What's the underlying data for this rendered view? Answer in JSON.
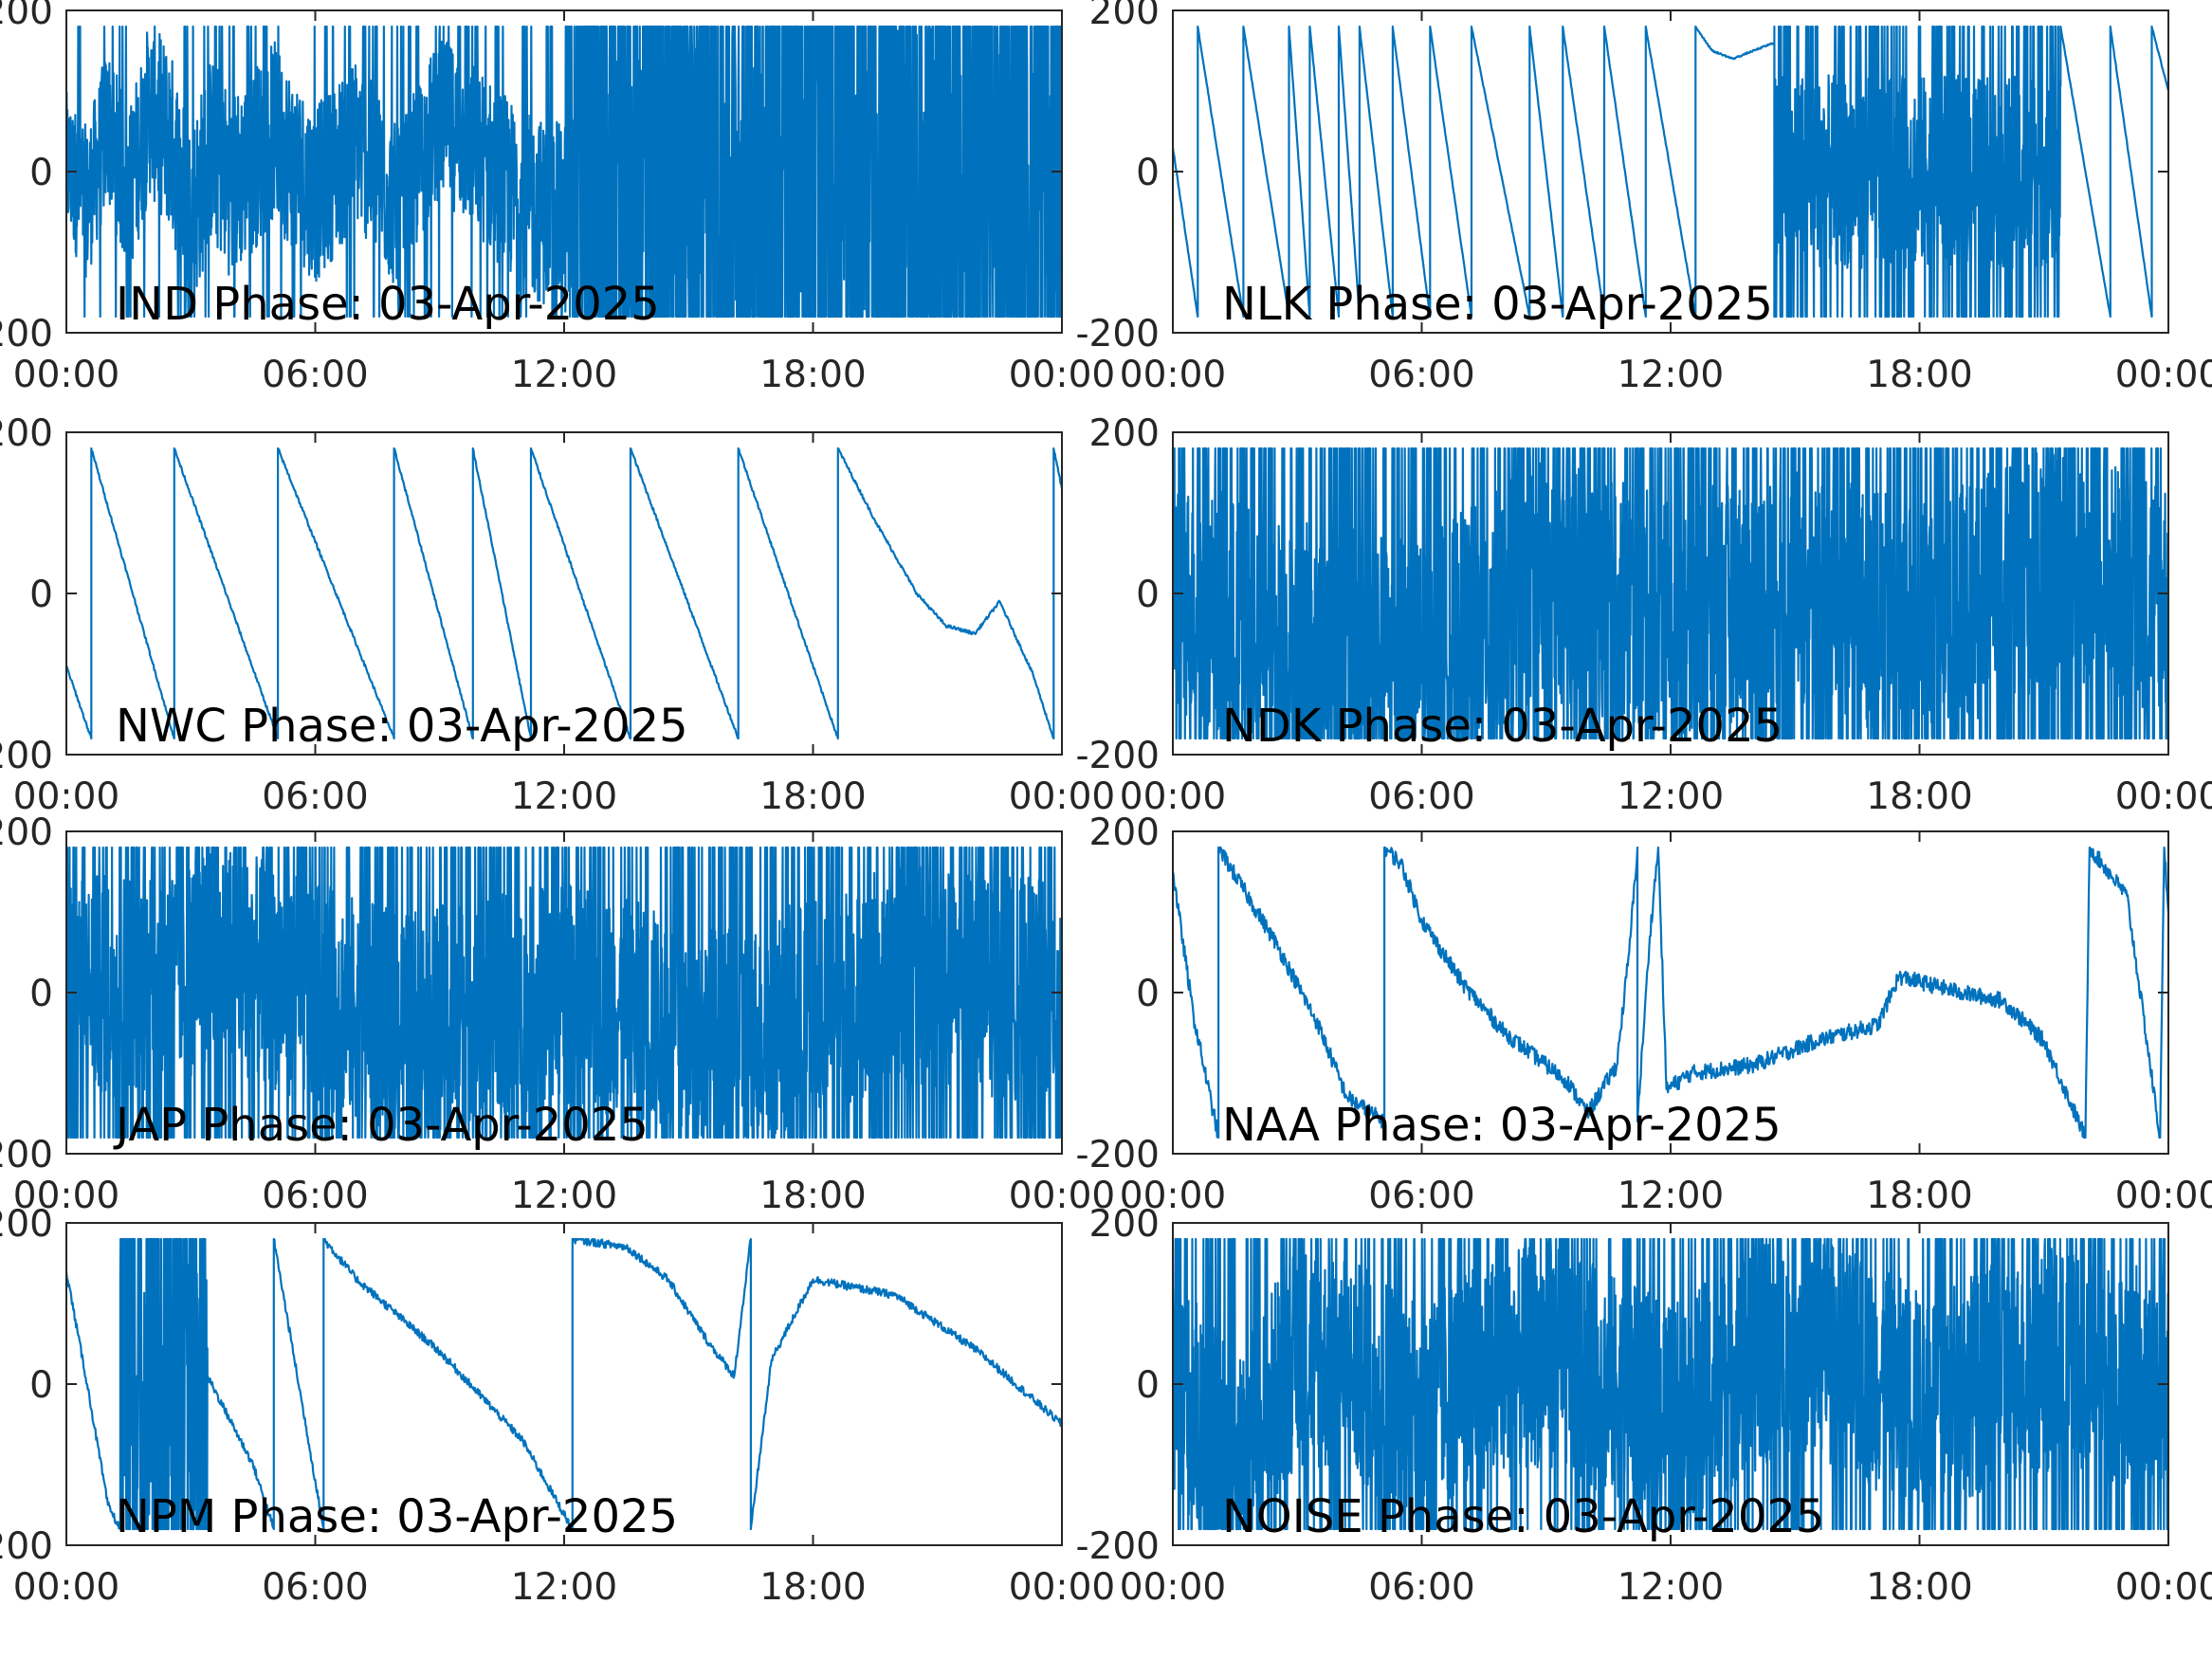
{
  "figure": {
    "background": "#ffffff",
    "series_color": "#0072bd",
    "axis_color": "#262626"
  },
  "chart_data": [
    {
      "type": "line",
      "station": "IND",
      "title": "IND Phase: 03-Apr-2025",
      "x_ticks": [
        "00:00",
        "06:00",
        "12:00",
        "18:00",
        "00:00"
      ],
      "y_ticks": [
        "-200",
        "0",
        "200"
      ],
      "ylim": [
        -200,
        200
      ],
      "x_range_hours": [
        0,
        24
      ],
      "series": [
        {
          "style": "noise",
          "values": [
            [
              0,
              10
            ],
            [
              0.5,
              -40
            ],
            [
              1,
              60
            ],
            [
              1.5,
              -30
            ],
            [
              2,
              80
            ],
            [
              2.5,
              40
            ],
            [
              3,
              -60
            ],
            [
              3.5,
              30
            ],
            [
              4,
              -20
            ],
            [
              5,
              50
            ],
            [
              6,
              -30
            ],
            [
              7,
              40
            ],
            [
              8,
              -50
            ],
            [
              9,
              70
            ],
            [
              10,
              20
            ],
            [
              11,
              -40
            ],
            [
              12,
              -60
            ],
            [
              12.5,
              0
            ],
            [
              24,
              0
            ]
          ],
          "noise_amp": [
            [
              0,
              90
            ],
            [
              3,
              120
            ],
            [
              6,
              110
            ],
            [
              9,
              100
            ],
            [
              12,
              120
            ],
            [
              12.5,
              220
            ],
            [
              24,
              220
            ]
          ],
          "wrap_prob": [
            [
              0,
              0.05
            ],
            [
              3,
              0.08
            ],
            [
              6,
              0.1
            ],
            [
              9,
              0.1
            ],
            [
              12,
              0.15
            ],
            [
              12.5,
              0.6
            ],
            [
              24,
              0.6
            ]
          ]
        }
      ]
    },
    {
      "type": "line",
      "station": "NLK",
      "title": "NLK Phase: 03-Apr-2025",
      "x_ticks": [
        "00:00",
        "06:00",
        "12:00",
        "18:00",
        "00:00"
      ],
      "y_ticks": [
        "-200",
        "0",
        "200"
      ],
      "ylim": [
        -200,
        200
      ],
      "x_range_hours": [
        0,
        24
      ],
      "series": [
        {
          "style": "mixed",
          "values": [
            [
              0,
              30
            ],
            [
              0.6,
              -180
            ],
            [
              0.6,
              180
            ],
            [
              1.7,
              -180
            ],
            [
              1.7,
              180
            ],
            [
              2.8,
              -180
            ],
            [
              2.8,
              180
            ],
            [
              3.3,
              -180
            ],
            [
              3.3,
              180
            ],
            [
              4.0,
              -180
            ],
            [
              4.0,
              180
            ],
            [
              4.5,
              -180
            ],
            [
              4.5,
              180
            ],
            [
              5.3,
              -180
            ],
            [
              5.3,
              180
            ],
            [
              6.2,
              -180
            ],
            [
              6.2,
              180
            ],
            [
              7.2,
              -180
            ],
            [
              7.2,
              180
            ],
            [
              8.6,
              -180
            ],
            [
              8.6,
              180
            ],
            [
              9.4,
              -180
            ],
            [
              9.4,
              180
            ],
            [
              10.4,
              -180
            ],
            [
              10.4,
              180
            ],
            [
              11.4,
              -180
            ],
            [
              11.4,
              180
            ],
            [
              12.6,
              -180
            ],
            [
              12.6,
              180
            ],
            [
              13.0,
              150
            ],
            [
              13.5,
              140
            ],
            [
              14.5,
              160
            ],
            [
              14.5,
              -180
            ]
          ],
          "noise_segments": [
            {
              "from": 14.5,
              "to": 21.4,
              "center": 0,
              "amp": 120,
              "wrap_prob": 0.25
            }
          ],
          "tail": [
            [
              21.4,
              180
            ],
            [
              22.6,
              -180
            ],
            [
              22.6,
              180
            ],
            [
              23.6,
              -180
            ],
            [
              23.6,
              180
            ],
            [
              24,
              100
            ]
          ]
        }
      ]
    },
    {
      "type": "line",
      "station": "NWC",
      "title": "NWC Phase: 03-Apr-2025",
      "x_ticks": [
        "00:00",
        "06:00",
        "12:00",
        "18:00",
        "00:00"
      ],
      "y_ticks": [
        "-200",
        "0",
        "200"
      ],
      "ylim": [
        -200,
        200
      ],
      "x_range_hours": [
        0,
        24
      ],
      "series": [
        {
          "style": "sawtooth",
          "values": [
            [
              0,
              -90
            ],
            [
              0.6,
              -180
            ],
            [
              0.6,
              180
            ],
            [
              2.6,
              -180
            ],
            [
              2.6,
              180
            ],
            [
              5.1,
              -180
            ],
            [
              5.1,
              180
            ],
            [
              7.9,
              -180
            ],
            [
              7.9,
              180
            ],
            [
              9.8,
              -180
            ],
            [
              9.8,
              180
            ],
            [
              11.2,
              -180
            ],
            [
              11.2,
              180
            ],
            [
              13.6,
              -180
            ],
            [
              13.6,
              180
            ],
            [
              16.2,
              -180
            ],
            [
              16.2,
              180
            ],
            [
              18.6,
              -180
            ],
            [
              18.6,
              180
            ],
            [
              19.5,
              90
            ],
            [
              20.5,
              0
            ],
            [
              21.2,
              -40
            ],
            [
              21.9,
              -50
            ],
            [
              22.5,
              -10
            ],
            [
              23.3,
              -100
            ],
            [
              23.8,
              -180
            ],
            [
              23.8,
              180
            ],
            [
              24,
              130
            ]
          ]
        }
      ]
    },
    {
      "type": "line",
      "station": "NDK",
      "title": "NDK Phase: 03-Apr-2025",
      "x_ticks": [
        "00:00",
        "06:00",
        "12:00",
        "18:00",
        "00:00"
      ],
      "y_ticks": [
        "-200",
        "0",
        "200"
      ],
      "ylim": [
        -200,
        200
      ],
      "x_range_hours": [
        0,
        24
      ],
      "series": [
        {
          "style": "noise",
          "values": [
            [
              0,
              0
            ],
            [
              3,
              -60
            ],
            [
              6,
              -80
            ],
            [
              9,
              20
            ],
            [
              12,
              -30
            ],
            [
              15,
              10
            ],
            [
              18,
              -40
            ],
            [
              21,
              30
            ],
            [
              24,
              0
            ]
          ],
          "noise_amp": [
            [
              0,
              150
            ],
            [
              24,
              150
            ]
          ],
          "wrap_prob": [
            [
              0,
              0.3
            ],
            [
              24,
              0.3
            ]
          ]
        }
      ]
    },
    {
      "type": "line",
      "station": "JAP",
      "title": "JAP Phase: 03-Apr-2025",
      "x_ticks": [
        "00:00",
        "06:00",
        "12:00",
        "18:00",
        "00:00"
      ],
      "y_ticks": [
        "-200",
        "0",
        "200"
      ],
      "ylim": [
        -200,
        200
      ],
      "x_range_hours": [
        0,
        24
      ],
      "series": [
        {
          "style": "noise",
          "values": [
            [
              0,
              0
            ],
            [
              4,
              40
            ],
            [
              8,
              -40
            ],
            [
              12,
              0
            ],
            [
              16,
              -60
            ],
            [
              20,
              20
            ],
            [
              24,
              0
            ]
          ],
          "noise_amp": [
            [
              0,
              140
            ],
            [
              24,
              140
            ]
          ],
          "wrap_prob": [
            [
              0,
              0.25
            ],
            [
              24,
              0.3
            ]
          ]
        }
      ]
    },
    {
      "type": "line",
      "station": "NAA",
      "title": "NAA Phase: 03-Apr-2025",
      "x_ticks": [
        "00:00",
        "06:00",
        "12:00",
        "18:00",
        "00:00"
      ],
      "y_ticks": [
        "-200",
        "0",
        "200"
      ],
      "ylim": [
        -200,
        200
      ],
      "x_range_hours": [
        0,
        24
      ],
      "series": [
        {
          "style": "smooth",
          "values": [
            [
              0,
              150
            ],
            [
              0.5,
              -30
            ],
            [
              1.1,
              -180
            ],
            [
              1.1,
              180
            ],
            [
              2.5,
              60
            ],
            [
              3.5,
              -40
            ],
            [
              4.2,
              -130
            ],
            [
              5.1,
              -160
            ],
            [
              5.1,
              180
            ],
            [
              5.5,
              160
            ],
            [
              6,
              90
            ],
            [
              7,
              10
            ],
            [
              8,
              -50
            ],
            [
              8.5,
              -70
            ],
            [
              9.5,
              -110
            ],
            [
              10,
              -150
            ],
            [
              10.7,
              -90
            ],
            [
              11,
              50
            ],
            [
              11.2,
              180
            ],
            [
              11.2,
              -160
            ],
            [
              11.5,
              70
            ],
            [
              11.7,
              180
            ],
            [
              11.9,
              -120
            ],
            [
              12.5,
              -100
            ],
            [
              14,
              -90
            ],
            [
              15.5,
              -60
            ],
            [
              17,
              -40
            ],
            [
              17.5,
              20
            ],
            [
              19,
              0
            ],
            [
              20,
              -10
            ],
            [
              21,
              -60
            ],
            [
              21.5,
              -120
            ],
            [
              22,
              -180
            ],
            [
              22.1,
              180
            ],
            [
              23,
              120
            ],
            [
              23.8,
              -180
            ],
            [
              23.9,
              180
            ],
            [
              24,
              100
            ]
          ],
          "jitter": 10
        }
      ]
    },
    {
      "type": "line",
      "station": "NPM",
      "title": "NPM Phase: 03-Apr-2025",
      "x_ticks": [
        "00:00",
        "06:00",
        "12:00",
        "18:00",
        "00:00"
      ],
      "y_ticks": [
        "-200",
        "0",
        "200"
      ],
      "ylim": [
        -200,
        200
      ],
      "x_range_hours": [
        0,
        24
      ],
      "series": [
        {
          "style": "mixed",
          "values": [
            [
              0,
              140
            ],
            [
              0.5,
              0
            ],
            [
              1,
              -150
            ],
            [
              1.3,
              -180
            ]
          ],
          "noise_segments": [
            {
              "from": 1.3,
              "to": 3.4,
              "center": 0,
              "amp": 170,
              "wrap_prob": 0.5
            }
          ],
          "tail": [
            [
              3.4,
              10
            ],
            [
              4.5,
              -100
            ],
            [
              5,
              -180
            ],
            [
              5,
              180
            ],
            [
              6.2,
              -180
            ],
            [
              6.2,
              180
            ],
            [
              7,
              130
            ],
            [
              9,
              40
            ],
            [
              11,
              -70
            ],
            [
              12.2,
              -180
            ],
            [
              12.2,
              180
            ],
            [
              13.5,
              170
            ],
            [
              14.5,
              130
            ],
            [
              15.5,
              50
            ],
            [
              16.1,
              10
            ],
            [
              16.5,
              180
            ],
            [
              16.5,
              -180
            ],
            [
              17,
              30
            ],
            [
              18,
              130
            ],
            [
              20,
              110
            ],
            [
              22,
              40
            ],
            [
              24,
              -50
            ]
          ],
          "jitter": 5
        }
      ]
    },
    {
      "type": "line",
      "station": "NOISE",
      "title": "NOISE Phase: 03-Apr-2025",
      "x_ticks": [
        "00:00",
        "06:00",
        "12:00",
        "18:00",
        "00:00"
      ],
      "y_ticks": [
        "-200",
        "0",
        "200"
      ],
      "ylim": [
        -200,
        200
      ],
      "x_range_hours": [
        0,
        24
      ],
      "series": [
        {
          "style": "noise",
          "values": [
            [
              0,
              0
            ],
            [
              1.5,
              -100
            ],
            [
              3,
              40
            ],
            [
              6,
              -20
            ],
            [
              9,
              40
            ],
            [
              12,
              -40
            ],
            [
              15,
              60
            ],
            [
              18,
              -20
            ],
            [
              21,
              30
            ],
            [
              24,
              0
            ]
          ],
          "noise_amp": [
            [
              0,
              140
            ],
            [
              24,
              140
            ]
          ],
          "wrap_prob": [
            [
              0,
              0.2
            ],
            [
              24,
              0.25
            ]
          ]
        }
      ]
    }
  ]
}
